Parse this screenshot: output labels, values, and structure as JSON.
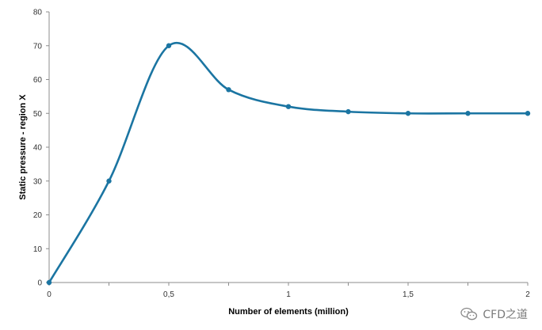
{
  "chart_data": {
    "type": "line",
    "title": "",
    "xlabel": "Number of elements (million)",
    "ylabel": "Static pressure - region X",
    "x": [
      0,
      0.25,
      0.5,
      0.75,
      1,
      1.25,
      1.5,
      1.75,
      2
    ],
    "series": [
      {
        "values": [
          0,
          30,
          70,
          57,
          52,
          50.5,
          50,
          50,
          50
        ]
      }
    ],
    "xlim": [
      0,
      2
    ],
    "ylim": [
      0,
      80
    ],
    "xticks": [
      0,
      0.5,
      1,
      1.5,
      2
    ],
    "xtick_labels": [
      "0",
      "0,5",
      "1",
      "1,5",
      "2"
    ],
    "xticks_minor": [
      0.25,
      0.75,
      1.25,
      1.75
    ],
    "yticks": [
      0,
      10,
      20,
      30,
      40,
      50,
      60,
      70,
      80
    ],
    "ytick_labels": [
      "0",
      "10",
      "20",
      "30",
      "40",
      "50",
      "60",
      "70",
      "80"
    ],
    "grid": false,
    "legend": "none",
    "line_color": "#1b75a2",
    "axis_color": "#8c8c8c"
  },
  "watermark": {
    "text": "CFD之道",
    "icon": "wechat-icon"
  }
}
